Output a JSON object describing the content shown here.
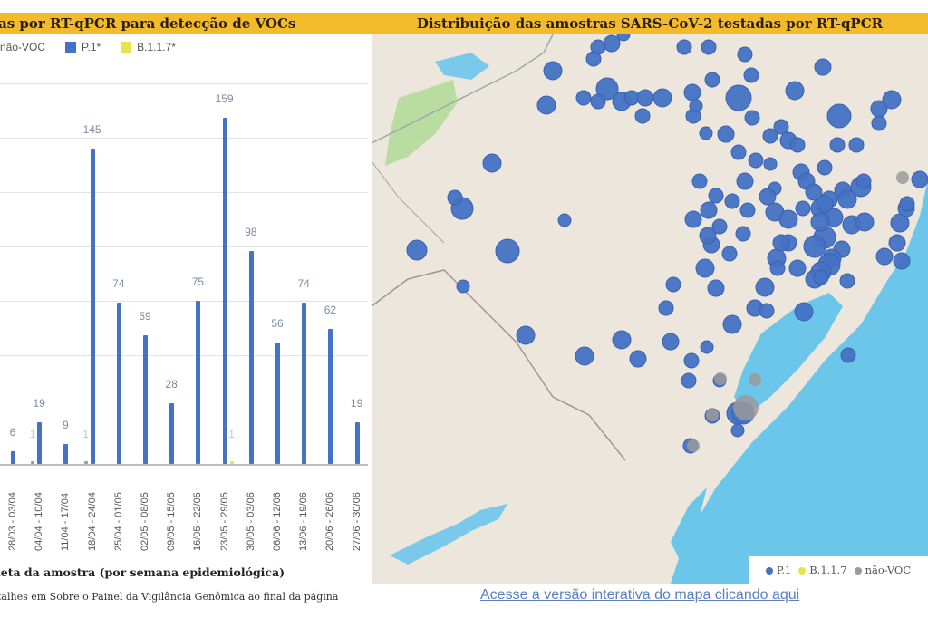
{
  "left_panel": {
    "banner": "as por RT-qPCR para detecção de VOCs",
    "legend": [
      {
        "label": "não-VOC",
        "color": "#9a9a9a",
        "show_swatch": false
      },
      {
        "label": "P.1*",
        "color": "#4472c4",
        "show_swatch": true
      },
      {
        "label": "B.1.1.7*",
        "color": "#e8e34a",
        "show_swatch": true
      }
    ],
    "xlabel": "leta da amostra (por semana epidemiológica)",
    "note": "talhes em Sobre o Painel da Vigilância Genômica ao final da página"
  },
  "right_panel": {
    "banner": "Distribuição das amostras SARS-CoV-2 testadas por RT-qPCR",
    "legend": [
      {
        "label": "P.1",
        "color": "#4472c4"
      },
      {
        "label": "B.1.1.7",
        "color": "#e8e34a"
      },
      {
        "label": "não-VOC",
        "color": "#9a9a9a"
      }
    ],
    "link": "Acesse a versão interativa do mapa clicando aqui"
  },
  "colors": {
    "banner": "#f3bb2b",
    "p1": "#4472c4",
    "b117": "#e8e34a",
    "nao_voc": "#9a9a9a",
    "ocean": "#6cc6ea",
    "land": "#ede6dc"
  },
  "chart_data": [
    {
      "type": "bar",
      "title": "Amostras por RT-qPCR para detecção de VOCs",
      "xlabel": "Data de coleta da amostra (por semana epidemiológica)",
      "ylabel": "",
      "categories": [
        "28/03 - 03/04",
        "04/04 - 10/04",
        "11/04 - 17/04",
        "18/04 - 24/04",
        "25/04 - 01/05",
        "02/05 - 08/05",
        "09/05 - 15/05",
        "16/05 - 22/05",
        "23/05 - 29/05",
        "30/05 - 03/06",
        "06/06 - 12/06",
        "13/06 - 19/06",
        "20/06 - 26/06",
        "27/06 - 30/06"
      ],
      "series": [
        {
          "name": "P.1*",
          "values": [
            6,
            19,
            9,
            145,
            74,
            59,
            28,
            75,
            159,
            98,
            56,
            74,
            62,
            19
          ]
        },
        {
          "name": "B.1.1.7*",
          "values": [
            0,
            0,
            0,
            0,
            0,
            0,
            0,
            0,
            1,
            0,
            0,
            0,
            0,
            0
          ]
        },
        {
          "name": "não-VOC",
          "values": [
            0,
            1,
            0,
            1,
            0,
            0,
            0,
            0,
            0,
            0,
            0,
            0,
            0,
            0
          ]
        }
      ],
      "ylim": [
        0,
        175
      ],
      "grid": true,
      "grid_step": 25,
      "legend_position": "top"
    },
    {
      "type": "scatter",
      "title": "Distribuição das amostras SARS-CoV-2 testadas por RT-qPCR",
      "description": "Bubble map of Rio Grande do Sul; bubble size = sample count per municipality, color = variant",
      "legend": [
        "P.1",
        "B.1.1.7",
        "não-VOC"
      ]
    }
  ]
}
